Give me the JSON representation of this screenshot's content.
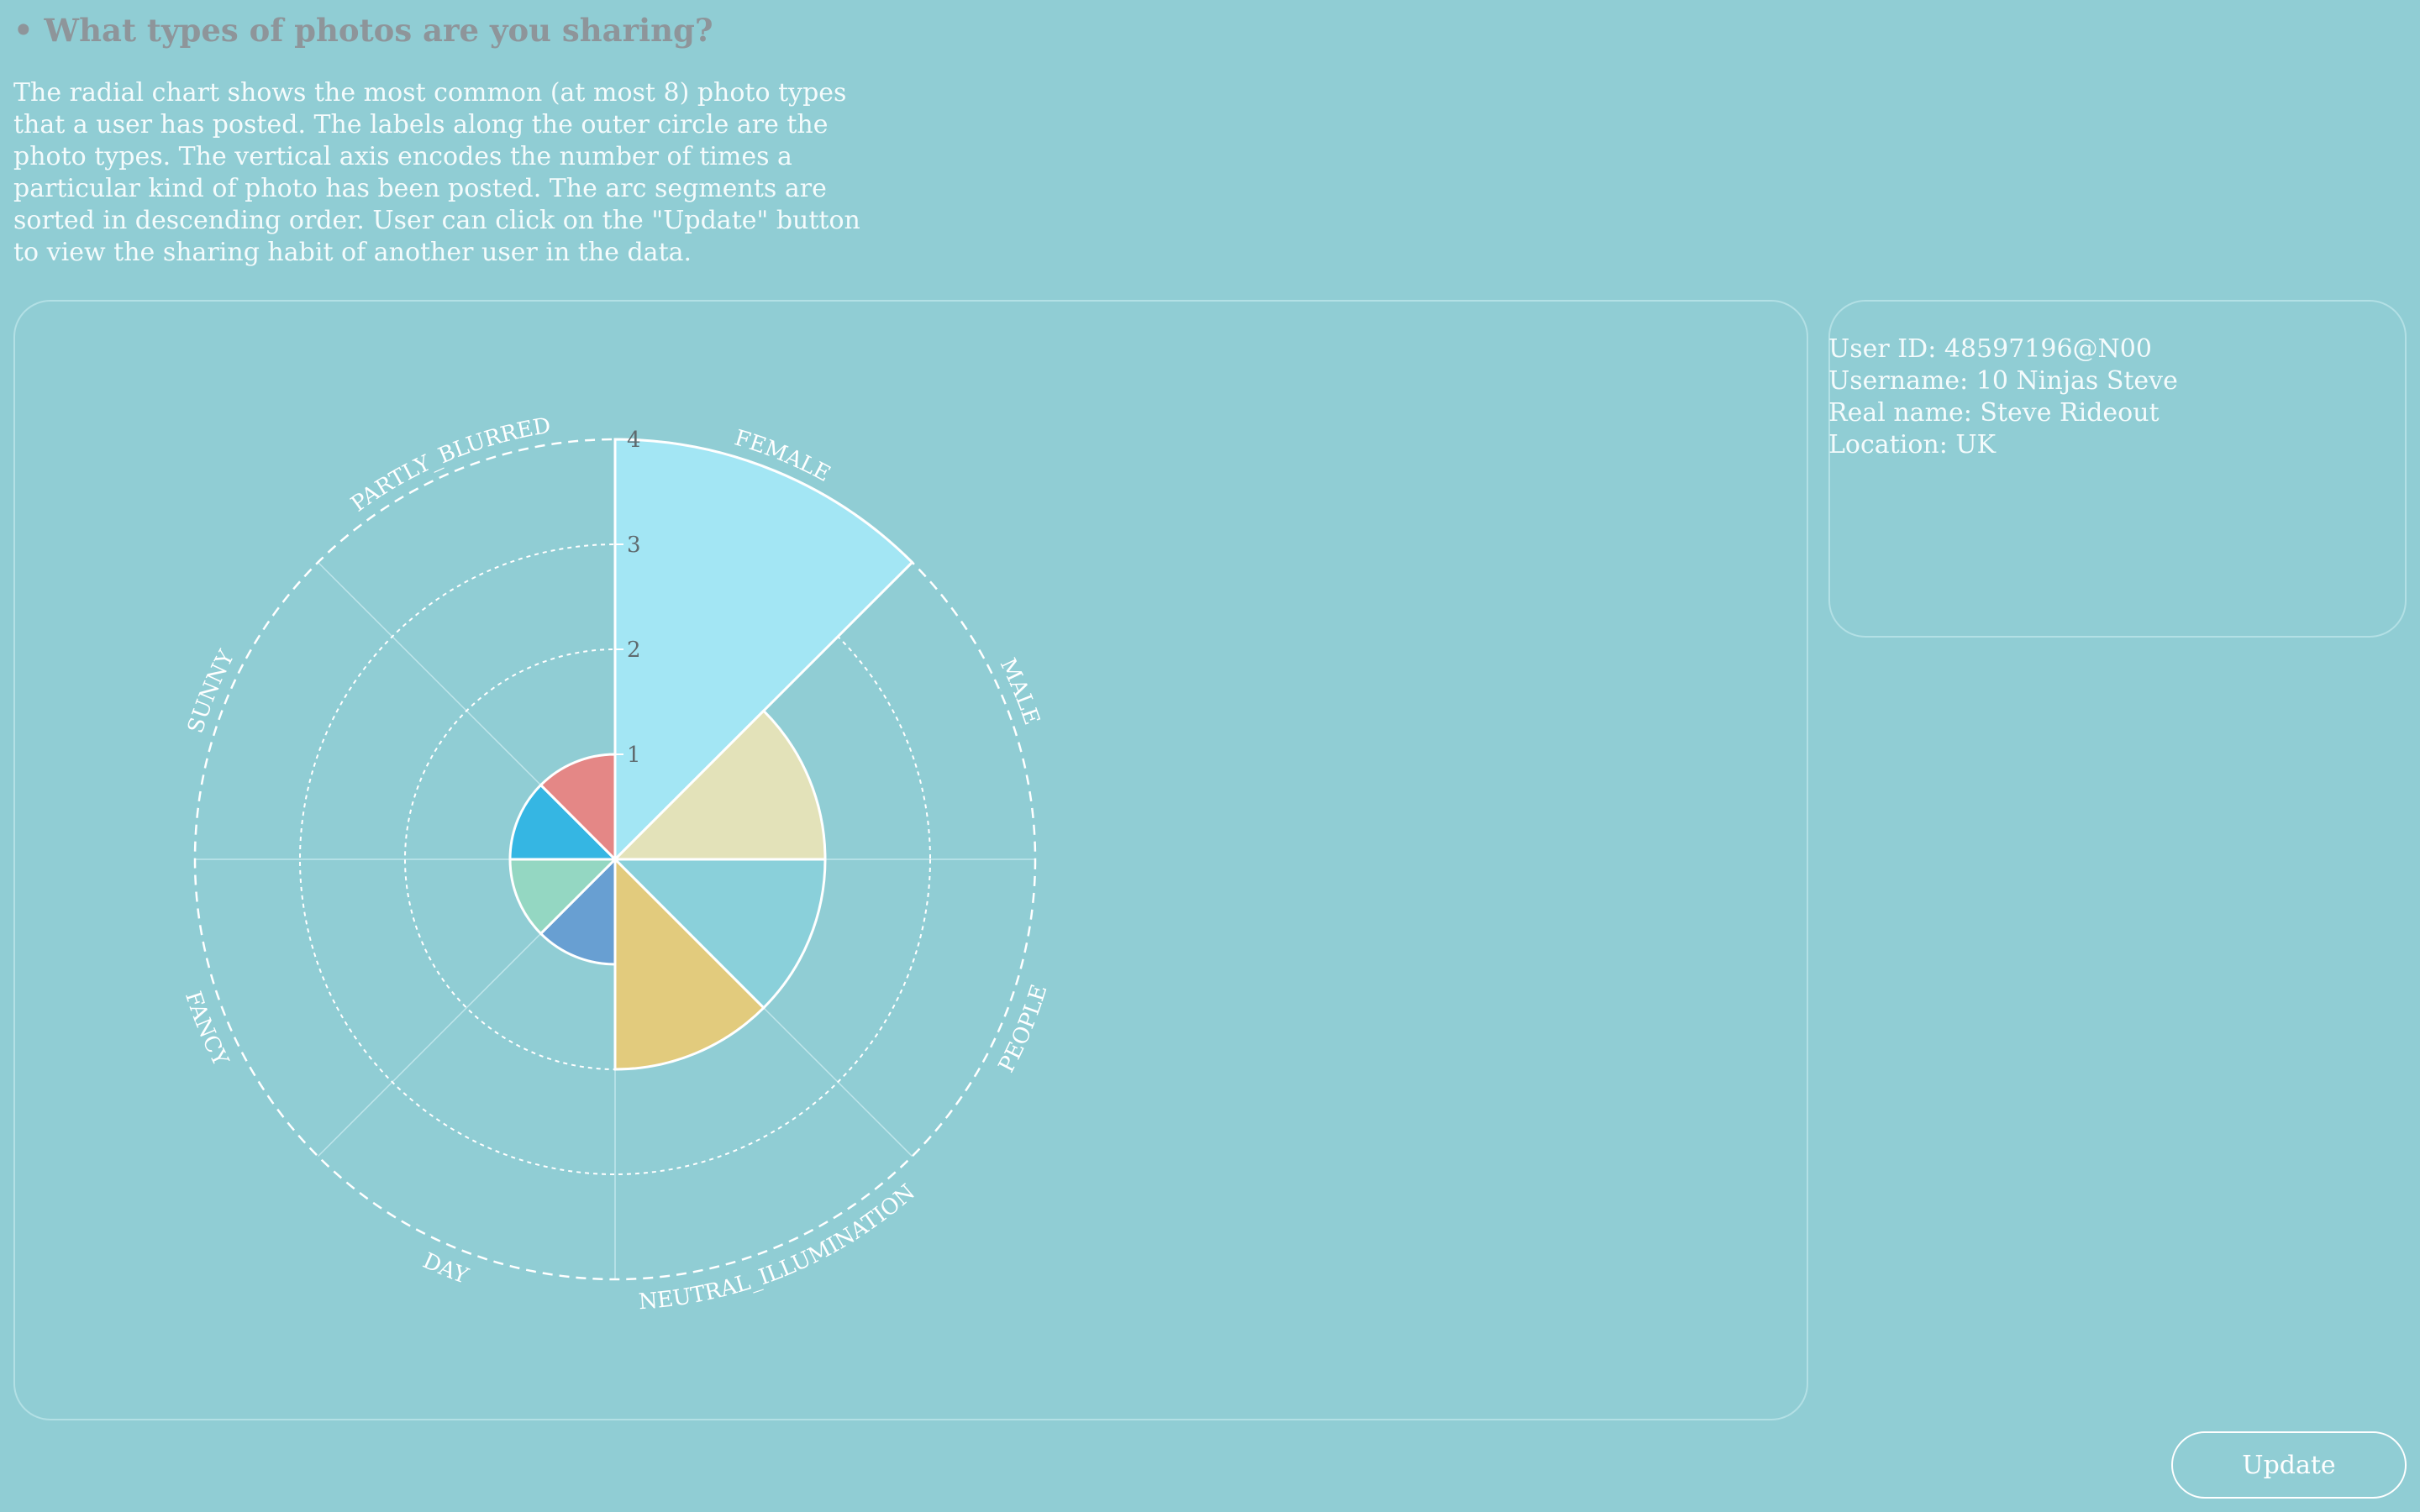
{
  "heading": "• What types of photos are you sharing?",
  "description": "The radial chart shows the most common (at most 8) photo types that a user has posted. The labels along the outer circle are the photo types. The vertical axis encodes the number of times a particular kind of photo has been posted. The arc segments are sorted in descending order. User can click on the \"Update\" button to view the sharing habit of another user in the data.",
  "user_info": {
    "user_id": "User ID: 48597196@N00",
    "username": "Username: 10 Ninjas Steve",
    "real_name": "Real name: Steve Rideout",
    "location": "Location: UK"
  },
  "update_label": "Update",
  "chart_data": {
    "type": "radial-bar",
    "categories": [
      "FEMALE",
      "MALE",
      "PEOPLE",
      "NEUTRAL_ILLUMINATION",
      "DAY",
      "FANCY",
      "SUNNY",
      "PARTLY_BLURRED"
    ],
    "values": [
      4,
      2,
      2,
      2,
      1,
      1,
      1,
      1
    ],
    "colors": [
      "#a3e6f4",
      "#e3e2b9",
      "#8ad0da",
      "#e2cb7d",
      "#689fd2",
      "#94d7c2",
      "#35b6e3",
      "#e48786"
    ],
    "radial_ticks": [
      1,
      2,
      3,
      4
    ],
    "rmax": 4,
    "grid": true
  }
}
